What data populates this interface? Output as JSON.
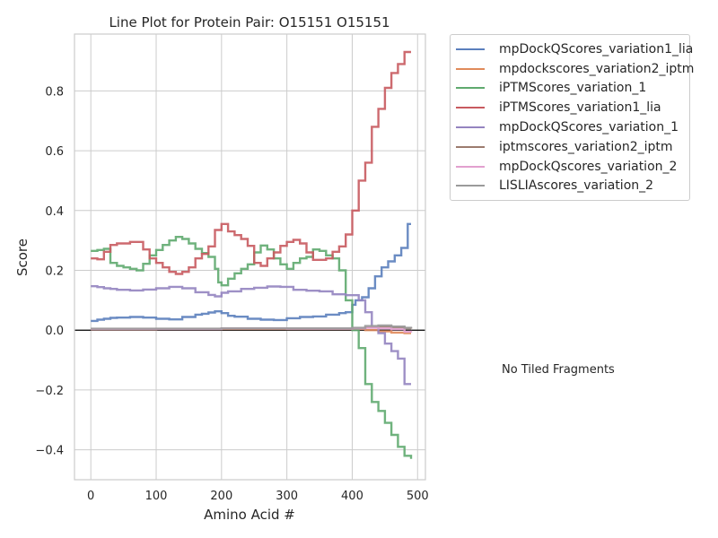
{
  "chart_data": {
    "type": "line",
    "title": "Line Plot for Protein Pair: O15151 O15151",
    "xlabel": "Amino Acid #",
    "ylabel": "Score",
    "xlim": [
      -25,
      512
    ],
    "ylim": [
      -0.5,
      0.99
    ],
    "xticks": [
      0,
      100,
      200,
      300,
      400,
      500
    ],
    "xtick_labels": [
      "0",
      "100",
      "200",
      "300",
      "400",
      "500"
    ],
    "yticks": [
      -0.4,
      -0.2,
      0.0,
      0.2,
      0.4,
      0.6,
      0.8
    ],
    "ytick_labels": [
      "−0.4",
      "−0.2",
      "0.0",
      "0.2",
      "0.4",
      "0.6",
      "0.8"
    ],
    "grid": true,
    "zero_line": true,
    "legend_position": "outside-right",
    "series": [
      {
        "name": "mpDockQScores_variation1_lia",
        "color": "#5b7fbd",
        "x": [
          0,
          10,
          20,
          30,
          40,
          60,
          80,
          100,
          120,
          140,
          160,
          170,
          180,
          190,
          200,
          210,
          220,
          240,
          260,
          280,
          300,
          320,
          340,
          360,
          380,
          390,
          400,
          405,
          415,
          425,
          435,
          445,
          455,
          465,
          475,
          485,
          490
        ],
        "y": [
          0.031,
          0.035,
          0.038,
          0.041,
          0.042,
          0.044,
          0.042,
          0.038,
          0.036,
          0.044,
          0.052,
          0.055,
          0.059,
          0.063,
          0.057,
          0.048,
          0.045,
          0.038,
          0.035,
          0.034,
          0.04,
          0.044,
          0.046,
          0.052,
          0.057,
          0.06,
          0.085,
          0.1,
          0.11,
          0.14,
          0.18,
          0.21,
          0.23,
          0.25,
          0.275,
          0.355,
          0.355
        ]
      },
      {
        "name": "mpdockscores_variation2_iptm",
        "color": "#e08a5a",
        "x": [
          0,
          100,
          200,
          300,
          400,
          420,
          440,
          460,
          480,
          490
        ],
        "y": [
          0.003,
          0.004,
          0.004,
          0.004,
          0.004,
          0.0,
          -0.004,
          -0.008,
          -0.01,
          -0.01
        ]
      },
      {
        "name": "iPTMScores_variation_1",
        "color": "#5faa6f",
        "x": [
          0,
          10,
          20,
          30,
          40,
          50,
          60,
          70,
          80,
          90,
          100,
          110,
          120,
          130,
          140,
          150,
          160,
          170,
          180,
          190,
          195,
          200,
          210,
          220,
          230,
          240,
          250,
          260,
          270,
          280,
          290,
          300,
          310,
          320,
          330,
          340,
          350,
          360,
          370,
          380,
          390,
          400,
          410,
          420,
          430,
          440,
          450,
          460,
          470,
          480,
          490
        ],
        "y": [
          0.265,
          0.268,
          0.272,
          0.225,
          0.215,
          0.21,
          0.205,
          0.2,
          0.222,
          0.25,
          0.268,
          0.285,
          0.3,
          0.312,
          0.305,
          0.29,
          0.272,
          0.258,
          0.245,
          0.205,
          0.16,
          0.15,
          0.172,
          0.19,
          0.205,
          0.22,
          0.26,
          0.283,
          0.27,
          0.24,
          0.22,
          0.205,
          0.225,
          0.24,
          0.245,
          0.27,
          0.265,
          0.25,
          0.24,
          0.2,
          0.1,
          0.0,
          -0.06,
          -0.18,
          -0.24,
          -0.27,
          -0.31,
          -0.35,
          -0.39,
          -0.42,
          -0.43
        ]
      },
      {
        "name": "iPTMScores_variation1_lia",
        "color": "#c85a5f",
        "x": [
          0,
          10,
          20,
          30,
          40,
          60,
          80,
          90,
          100,
          110,
          120,
          130,
          140,
          150,
          160,
          170,
          180,
          190,
          200,
          210,
          220,
          230,
          240,
          250,
          260,
          270,
          280,
          290,
          300,
          310,
          320,
          330,
          340,
          350,
          360,
          370,
          380,
          390,
          400,
          410,
          420,
          430,
          440,
          450,
          460,
          470,
          480,
          490
        ],
        "y": [
          0.24,
          0.237,
          0.262,
          0.285,
          0.29,
          0.295,
          0.27,
          0.24,
          0.225,
          0.21,
          0.195,
          0.188,
          0.195,
          0.21,
          0.24,
          0.255,
          0.28,
          0.335,
          0.355,
          0.33,
          0.318,
          0.305,
          0.282,
          0.225,
          0.215,
          0.24,
          0.26,
          0.282,
          0.295,
          0.302,
          0.29,
          0.26,
          0.235,
          0.235,
          0.24,
          0.262,
          0.28,
          0.32,
          0.4,
          0.5,
          0.56,
          0.68,
          0.74,
          0.81,
          0.86,
          0.89,
          0.93,
          0.93
        ]
      },
      {
        "name": "mpDockQScores_variation_1",
        "color": "#9484c0",
        "x": [
          0,
          10,
          20,
          30,
          40,
          60,
          80,
          100,
          120,
          140,
          160,
          180,
          190,
          200,
          210,
          230,
          250,
          270,
          290,
          310,
          330,
          350,
          370,
          390,
          410,
          420,
          430,
          440,
          450,
          460,
          470,
          480,
          490
        ],
        "y": [
          0.147,
          0.144,
          0.14,
          0.138,
          0.135,
          0.133,
          0.136,
          0.14,
          0.145,
          0.14,
          0.127,
          0.118,
          0.113,
          0.125,
          0.13,
          0.138,
          0.142,
          0.146,
          0.145,
          0.135,
          0.132,
          0.13,
          0.12,
          0.117,
          0.1,
          0.06,
          0.01,
          -0.01,
          -0.045,
          -0.07,
          -0.095,
          -0.18,
          -0.18
        ]
      },
      {
        "name": "iptmscores_variation2_iptm",
        "color": "#9c7b6e",
        "x": [
          0,
          100,
          200,
          300,
          400,
          420,
          440,
          460,
          480,
          490
        ],
        "y": [
          0.002,
          0.004,
          0.005,
          0.004,
          0.006,
          0.01,
          0.012,
          0.01,
          0.006,
          0.005
        ]
      },
      {
        "name": "mpDockQscores_variation_2",
        "color": "#e2a0cf",
        "x": [
          0,
          100,
          200,
          300,
          400,
          420,
          440,
          460,
          480,
          490
        ],
        "y": [
          0.004,
          0.004,
          0.006,
          0.005,
          0.006,
          0.008,
          0.006,
          0.003,
          -0.005,
          -0.008
        ]
      },
      {
        "name": "LISLIAscores_variation_2",
        "color": "#9a9a9a",
        "x": [
          0,
          100,
          200,
          300,
          400,
          420,
          440,
          460,
          480,
          490
        ],
        "y": [
          0.005,
          0.005,
          0.006,
          0.006,
          0.008,
          0.014,
          0.016,
          0.012,
          0.008,
          0.006
        ]
      }
    ],
    "annotation": "No Tiled Fragments"
  }
}
